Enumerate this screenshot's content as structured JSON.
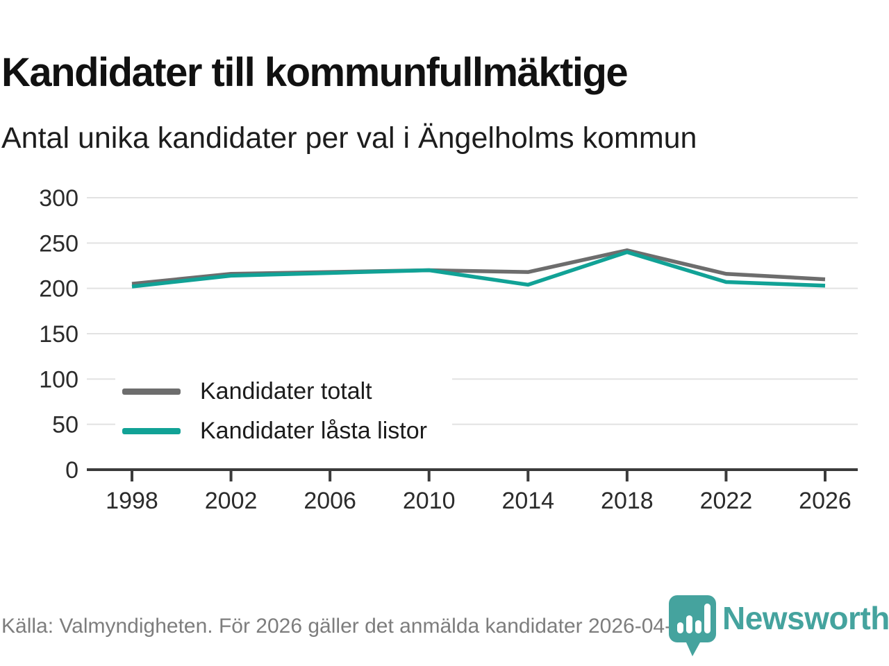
{
  "header": {
    "title": "Kandidater till kommunfullmäktige",
    "subtitle": "Antal unika kandidater per val i Ängelholms kommun"
  },
  "chart_data": {
    "type": "line",
    "categories": [
      "1998",
      "2002",
      "2006",
      "2010",
      "2014",
      "2018",
      "2022",
      "2026"
    ],
    "series": [
      {
        "name": "Kandidater totalt",
        "color": "#6d6d6d",
        "values": [
          205,
          216,
          218,
          220,
          218,
          242,
          216,
          210
        ]
      },
      {
        "name": "Kandidater låsta listor",
        "color": "#11a296",
        "values": [
          202,
          214,
          217,
          220,
          204,
          240,
          207,
          203
        ]
      }
    ],
    "ylim": [
      0,
      300
    ],
    "yticks": [
      0,
      50,
      100,
      150,
      200,
      250,
      300
    ],
    "grid": "horizontal",
    "legend_position": "inside-left-bottom"
  },
  "footer": {
    "source": "Källa: Valmyndigheten. För 2026 gäller det anmälda kandidater 2026-04-10.",
    "brand": "Newsworthy",
    "brand_color": "#45a39e",
    "logo_icon": "bar-chart-pin-icon"
  },
  "colors": {
    "accent_teal": "#11a296",
    "line_gray": "#6d6d6d",
    "grid": "#e2e2e2",
    "axis": "#3b3b3b",
    "tick_text": "#2b2b2b",
    "text": "#111111",
    "muted_text": "#7d7d7d"
  }
}
